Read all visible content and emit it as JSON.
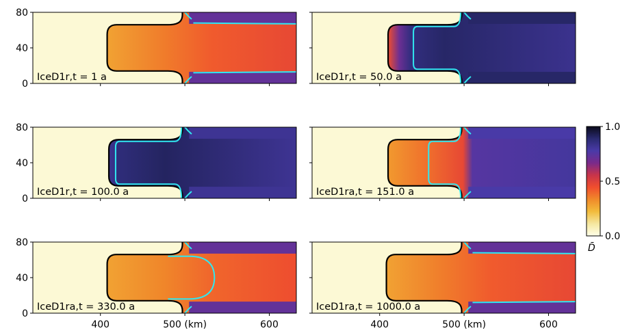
{
  "colors": {
    "grounding_line": "#000000",
    "calving_front": "#30e8f0",
    "colormap": [
      "#ffffe8",
      "#f5e7a0",
      "#f2bc3c",
      "#f08a2a",
      "#f04e2e",
      "#c8344a",
      "#7a2a8a",
      "#4a3aa8",
      "#2a2a70",
      "#0a0a1a"
    ]
  },
  "chart_data": [
    {
      "type": "heatmap",
      "label": "IceD1r,t = 1 a",
      "ylim": [
        0,
        80
      ],
      "yticks": [
        "0",
        "40",
        "80"
      ],
      "xlim": [
        320,
        632
      ],
      "xticks": [
        400,
        500,
        600
      ],
      "xticklabels": [],
      "field": "fresh",
      "cyan_x": null
    },
    {
      "type": "heatmap",
      "label": "IceD1r,t = 50.0 a",
      "ylim": [
        0,
        80
      ],
      "yticks": [],
      "xlim": [
        320,
        632
      ],
      "xticks": [
        400,
        500,
        600
      ],
      "xticklabels": [],
      "field": "damaged_front",
      "cyan_x": 440
    },
    {
      "type": "heatmap",
      "label": "IceD1r,t = 100.0 a",
      "ylim": [
        0,
        80
      ],
      "yticks": [
        "0",
        "40",
        "80"
      ],
      "xlim": [
        320,
        632
      ],
      "xticks": [
        400,
        500,
        600
      ],
      "xticklabels": [],
      "field": "damaged_full",
      "cyan_x": 418
    },
    {
      "type": "heatmap",
      "label": "IceD1ra,t = 151.0 a",
      "ylim": [
        0,
        80
      ],
      "yticks": [],
      "xlim": [
        320,
        632
      ],
      "xticks": [
        400,
        500,
        600
      ],
      "xticklabels": [],
      "field": "recovering",
      "cyan_x": 458
    },
    {
      "type": "heatmap",
      "label": "IceD1ra,t = 330.0 a",
      "ylim": [
        0,
        80
      ],
      "yticks": [
        "0",
        "40",
        "80"
      ],
      "xlim": [
        320,
        632
      ],
      "xticks": [
        400,
        500,
        600
      ],
      "xticklabels": [
        "400",
        "500 (km)",
        "600"
      ],
      "field": "healed",
      "cyan_x": 535
    },
    {
      "type": "heatmap",
      "label": "IceD1ra,t = 1000.0 a",
      "ylim": [
        0,
        80
      ],
      "yticks": [],
      "xlim": [
        320,
        632
      ],
      "xticks": [
        400,
        500,
        600
      ],
      "xticklabels": [
        "400",
        "500 (km)",
        "600"
      ],
      "field": "fresh",
      "cyan_x": null
    }
  ],
  "colorbar": {
    "label": "D̄",
    "range": [
      0.0,
      1.0
    ],
    "ticks": [
      "0.0",
      "0.5",
      "1.0"
    ]
  }
}
